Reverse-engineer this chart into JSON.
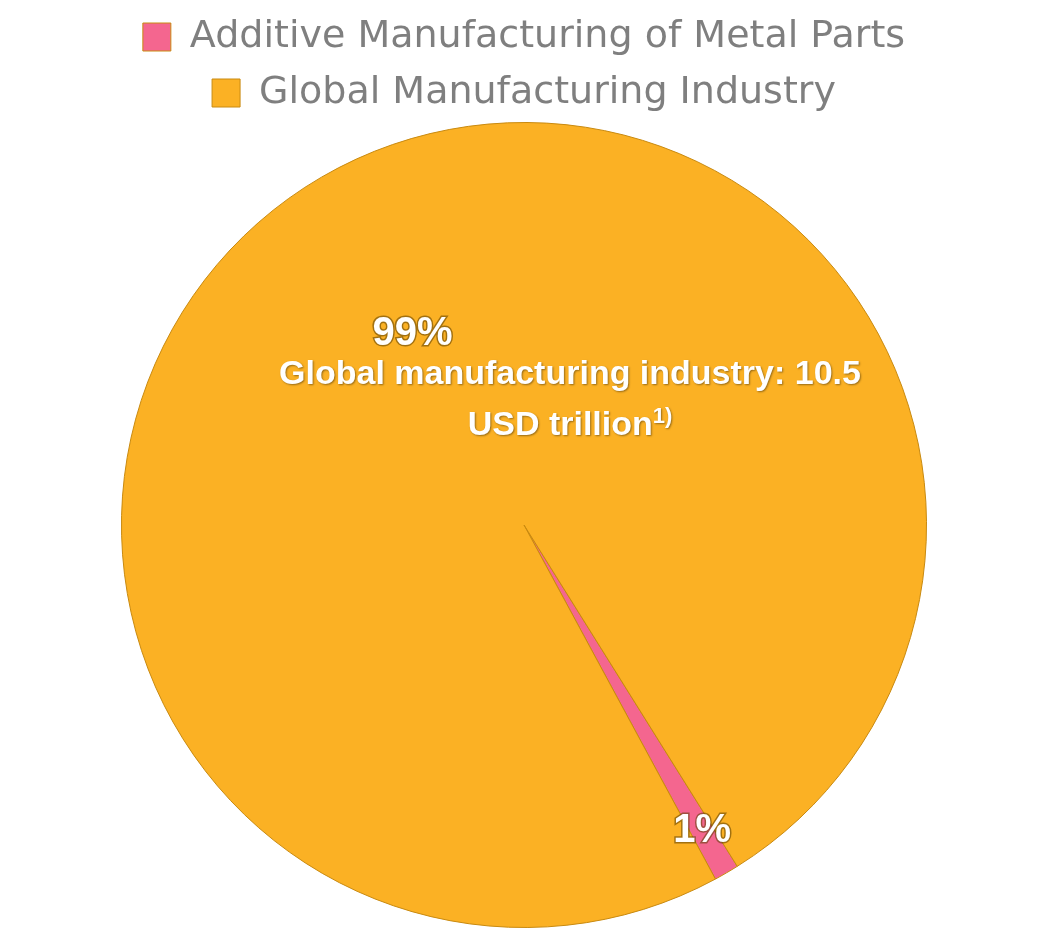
{
  "chart_data": {
    "type": "pie",
    "categories": [
      "Additive Manufacturing of Metal Parts",
      "Global Manufacturing Industry"
    ],
    "values": [
      1,
      99
    ],
    "colors": [
      "#f4668f",
      "#fbb124"
    ],
    "value_labels": [
      "1%",
      "99%"
    ],
    "legend": "top",
    "annotations": [
      "Global manufacturing industry: 10.5 USD trillion$^{1)}$"
    ]
  }
}
